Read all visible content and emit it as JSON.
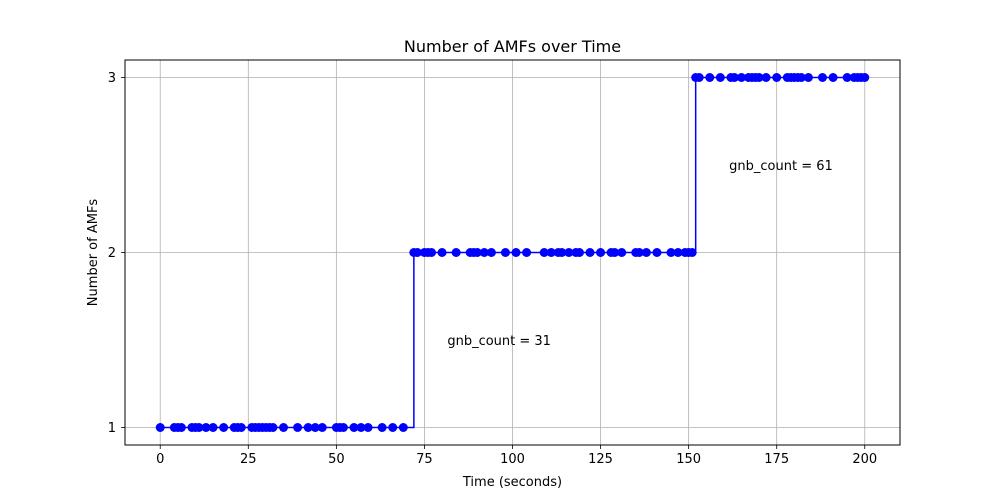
{
  "chart_data": {
    "type": "line",
    "title": "Number of AMFs over Time",
    "xlabel": "Time (seconds)",
    "ylabel": "Number of AMFs",
    "xlim": [
      -10,
      210
    ],
    "ylim": [
      0.9,
      3.1
    ],
    "xticks": [
      0,
      25,
      50,
      75,
      100,
      125,
      150,
      175,
      200
    ],
    "yticks": [
      1,
      2,
      3
    ],
    "grid": true,
    "step": "post",
    "line_color": "#0000ff",
    "marker": "circle",
    "series": [
      {
        "x": [
          0,
          4,
          5,
          6,
          9,
          10,
          11,
          13,
          15,
          18,
          21,
          22,
          23,
          26,
          27,
          28,
          29,
          30,
          31,
          32,
          35,
          39,
          42,
          44,
          46,
          50,
          51,
          52,
          55,
          57,
          59,
          63,
          66,
          69,
          72,
          73,
          75,
          76,
          77,
          80,
          84,
          88,
          89,
          90,
          92,
          94,
          98,
          101,
          104,
          109,
          111,
          113,
          114,
          116,
          118,
          119,
          122,
          125,
          128,
          129,
          131,
          135,
          136,
          138,
          141,
          145,
          147,
          149,
          150,
          151,
          152,
          153,
          156,
          159,
          162,
          163,
          165,
          167,
          168,
          169,
          170,
          172,
          175,
          178,
          179,
          180,
          181,
          182,
          184,
          188,
          191,
          195,
          197,
          198,
          199,
          200
        ],
        "y": [
          1,
          1,
          1,
          1,
          1,
          1,
          1,
          1,
          1,
          1,
          1,
          1,
          1,
          1,
          1,
          1,
          1,
          1,
          1,
          1,
          1,
          1,
          1,
          1,
          1,
          1,
          1,
          1,
          1,
          1,
          1,
          1,
          1,
          1,
          2,
          2,
          2,
          2,
          2,
          2,
          2,
          2,
          2,
          2,
          2,
          2,
          2,
          2,
          2,
          2,
          2,
          2,
          2,
          2,
          2,
          2,
          2,
          2,
          2,
          2,
          2,
          2,
          2,
          2,
          2,
          2,
          2,
          2,
          2,
          2,
          3,
          3,
          3,
          3,
          3,
          3,
          3,
          3,
          3,
          3,
          3,
          3,
          3,
          3,
          3,
          3,
          3,
          3,
          3,
          3,
          3,
          3,
          3,
          3,
          3,
          3
        ]
      }
    ],
    "annotations": [
      {
        "text": "gnb_count = 31",
        "x": 81.5,
        "y": 1.5
      },
      {
        "text": "gnb_count = 61",
        "x": 161.5,
        "y": 2.5
      }
    ]
  }
}
